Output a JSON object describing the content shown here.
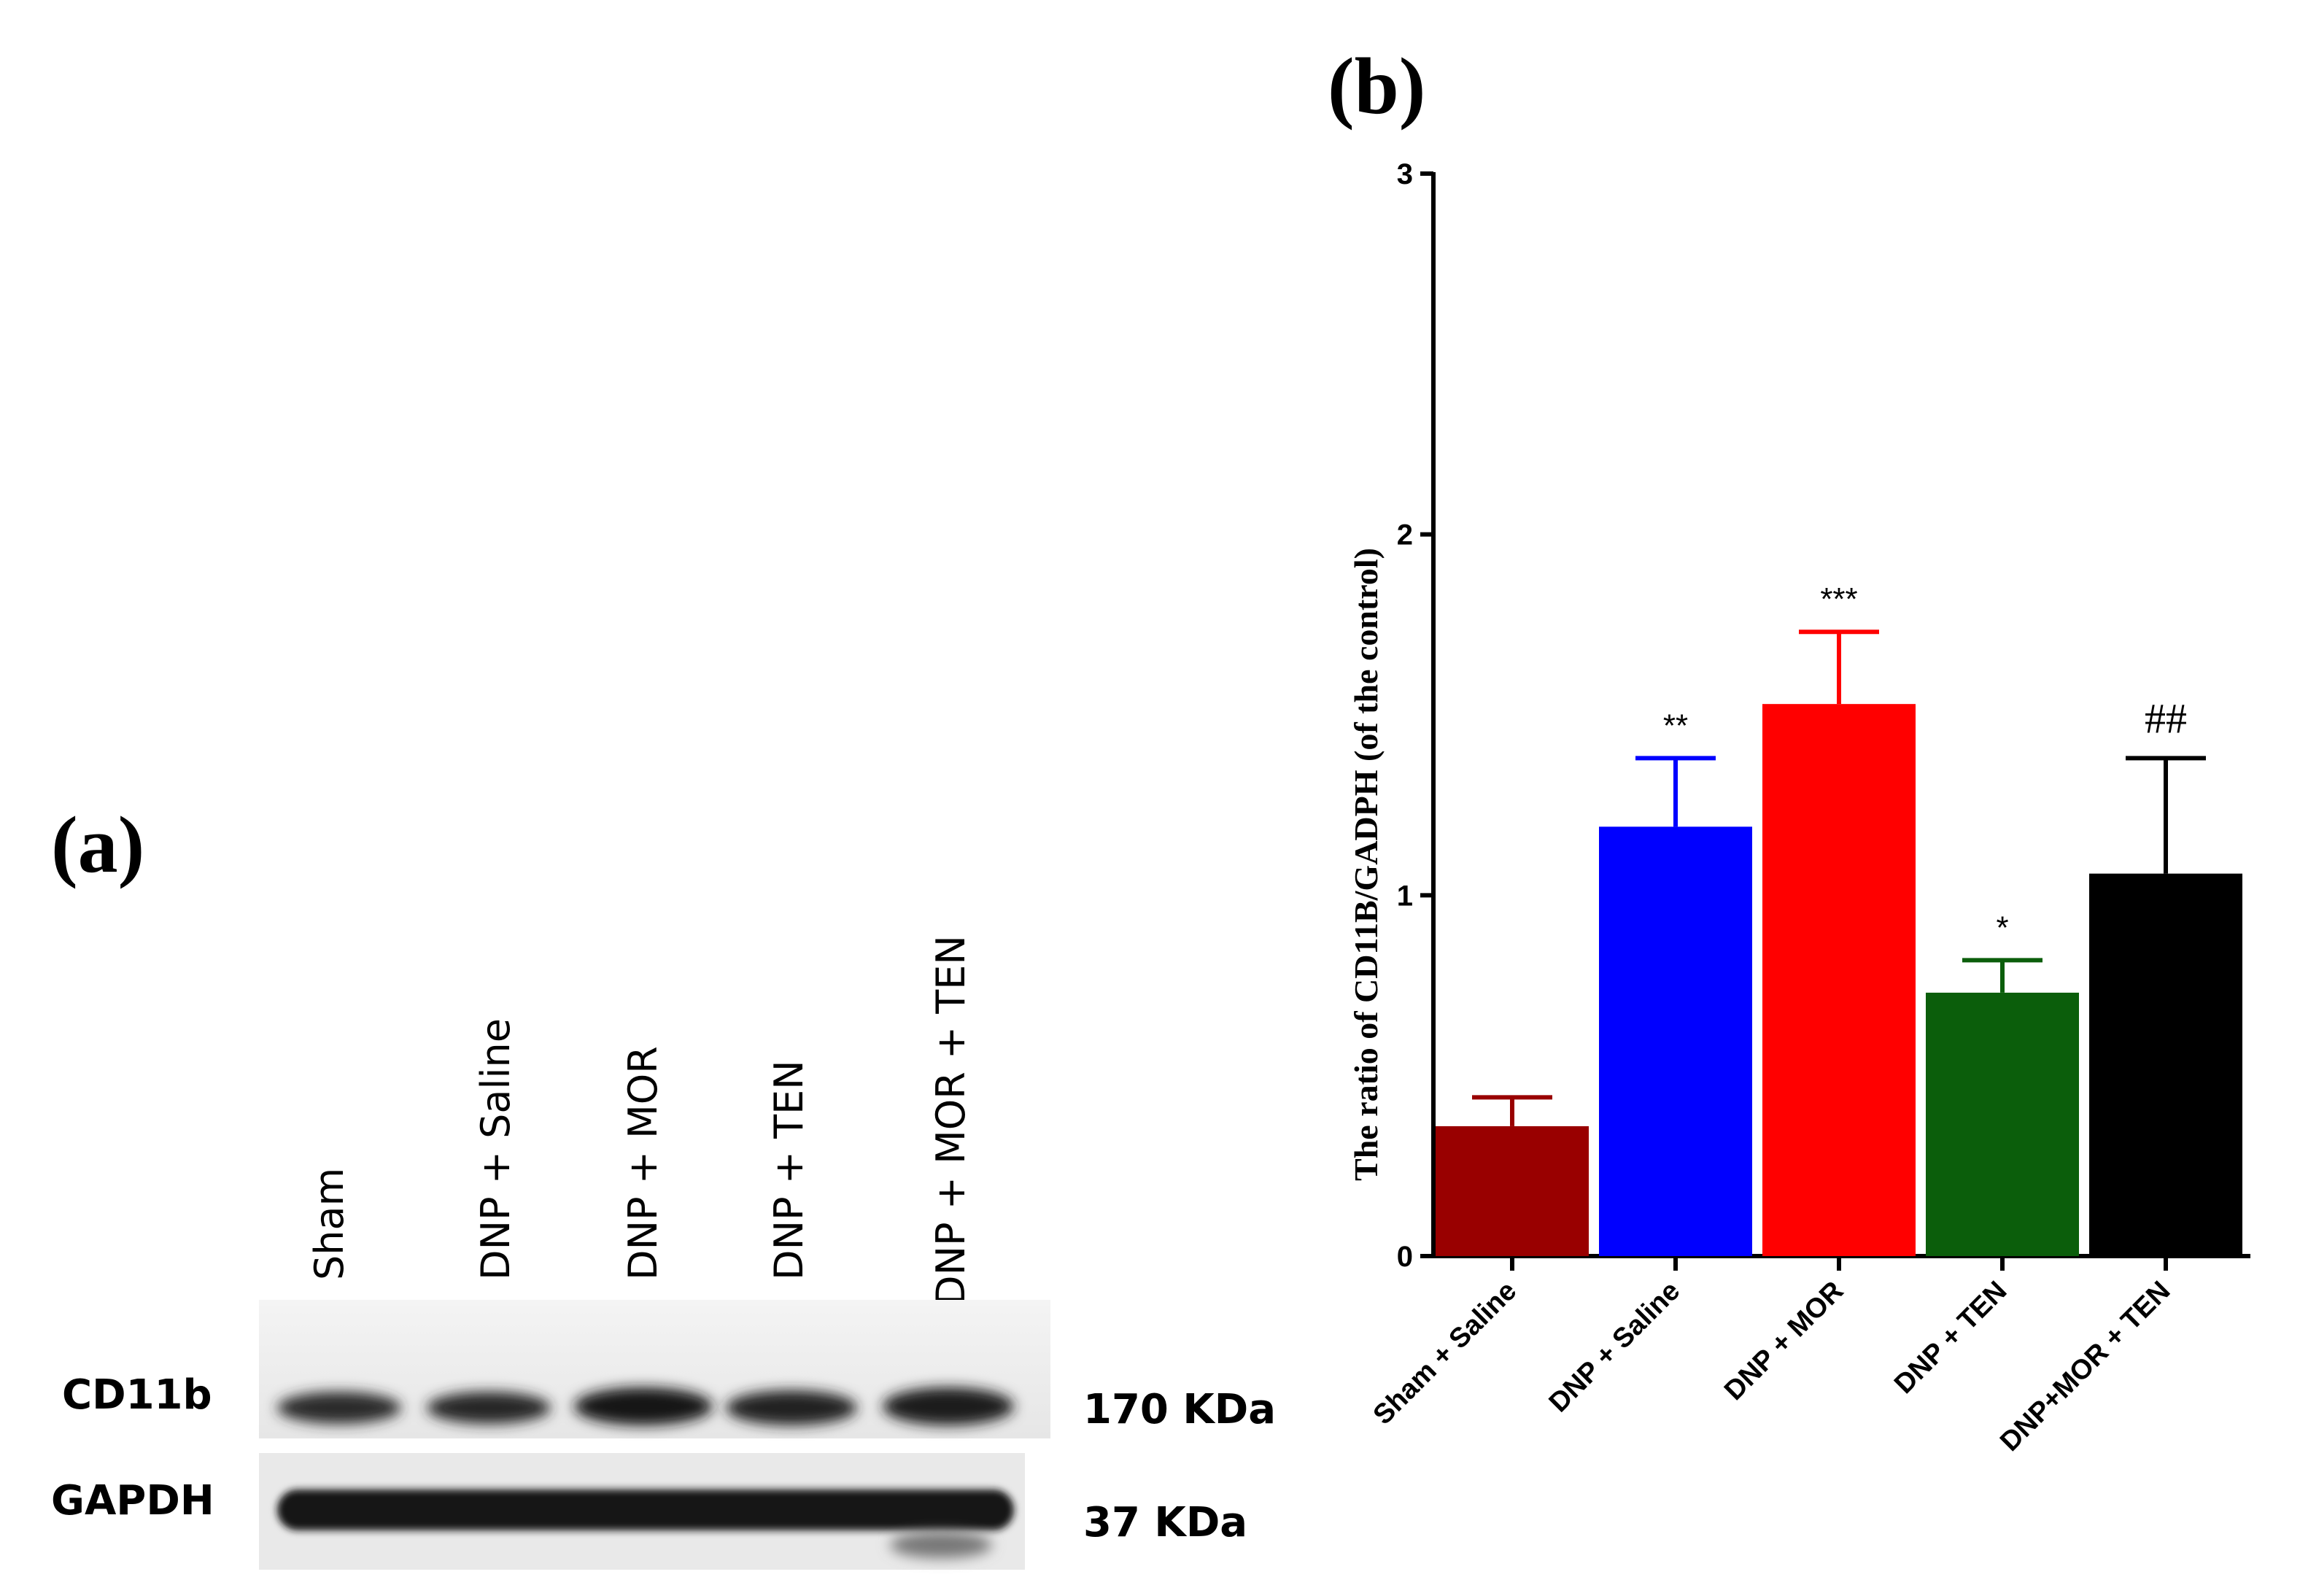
{
  "panel_a": {
    "letter": "(a)",
    "lanes": [
      "Sham",
      "DNP + Saline",
      "DNP + MOR",
      "DNP + TEN",
      "DNP + MOR + TEN"
    ],
    "bands": [
      {
        "name": "CD11b",
        "size": "170 KDa"
      },
      {
        "name": "GAPDH",
        "size": "37 KDa"
      }
    ]
  },
  "panel_b": {
    "letter": "(b)"
  },
  "chart_data": {
    "type": "bar",
    "title": "",
    "xlabel": "",
    "ylabel": "The ratio of CD11B/GADPH (of the control)",
    "ylim": [
      0,
      3
    ],
    "yticks": [
      "0",
      "1",
      "2",
      "3"
    ],
    "categories": [
      "Sham + Saline",
      "DNP + Saline",
      "DNP + MOR",
      "DNP + TEN",
      "DNP+MOR + TEN"
    ],
    "values": [
      0.36,
      1.19,
      1.53,
      0.73,
      1.06
    ],
    "errors": [
      0.08,
      0.19,
      0.2,
      0.09,
      0.32
    ],
    "colors": [
      "#990000",
      "#0000ff",
      "#ff0000",
      "#0b5e0b",
      "#000000"
    ],
    "annotations": [
      "",
      "**",
      "***",
      "*",
      "##"
    ],
    "grid": false
  }
}
